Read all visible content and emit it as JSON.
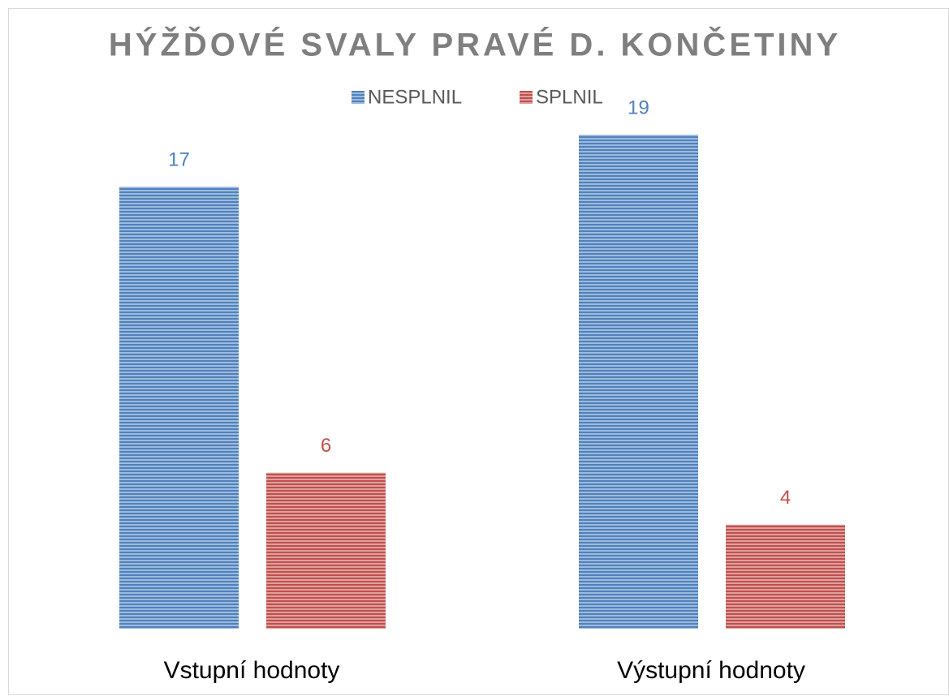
{
  "chart_data": {
    "type": "bar",
    "title": "HÝŽĎOVÉ SVALY PRAVÉ D. KONČETINY",
    "categories": [
      "Vstupní hodnoty",
      "Výstupní hodnoty"
    ],
    "series": [
      {
        "name": "NESPLNIL",
        "color": "#4f81bd",
        "values": [
          17,
          19
        ]
      },
      {
        "name": "SPLNIL",
        "color": "#c0504d",
        "values": [
          6,
          4
        ]
      }
    ],
    "ylim": [
      0,
      20
    ],
    "legend": "top"
  }
}
